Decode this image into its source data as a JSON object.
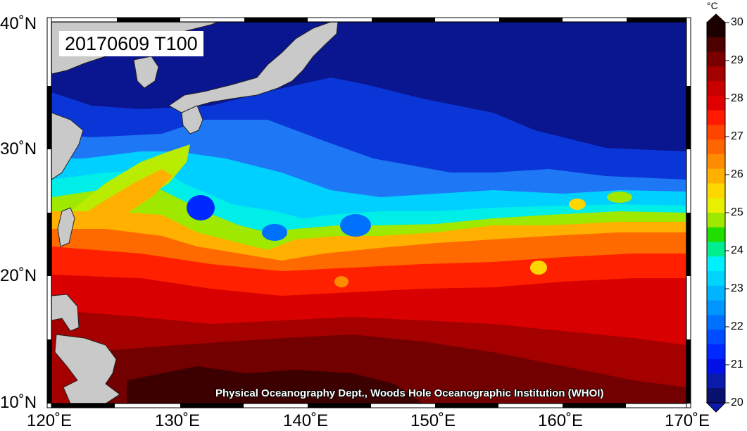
{
  "map": {
    "title": "20170609 T100",
    "credit": "Physical Oceanography Dept., Woods Hole Oceanographic Institution (WHOI)",
    "lon_labels": [
      "120˚E",
      "130˚E",
      "140˚E",
      "150˚E",
      "160˚E",
      "170˚E"
    ],
    "lat_labels": [
      "40˚N",
      "30˚N",
      "20˚N",
      "10˚N"
    ],
    "region": "Northwest Pacific Ocean with Japan, Taiwan and the Philippines"
  },
  "colorbar": {
    "unit": "°C",
    "labels": [
      "30",
      "29",
      "28",
      "27",
      "26",
      "25",
      "24",
      "23",
      "22",
      "21",
      "20"
    ],
    "colors": [
      "#1c0000",
      "#4d0000",
      "#7a0000",
      "#a30000",
      "#c80000",
      "#e00000",
      "#ff1a00",
      "#ff4400",
      "#ff6600",
      "#ff8c00",
      "#ffb000",
      "#ffd700",
      "#e8f000",
      "#a0e800",
      "#22dd00",
      "#00ee90",
      "#00f0ff",
      "#00d4ff",
      "#00b4ff",
      "#0096ff",
      "#0070ff",
      "#004dff",
      "#0028ff",
      "#0010e6",
      "#0a1aaa",
      "#081070"
    ]
  }
}
